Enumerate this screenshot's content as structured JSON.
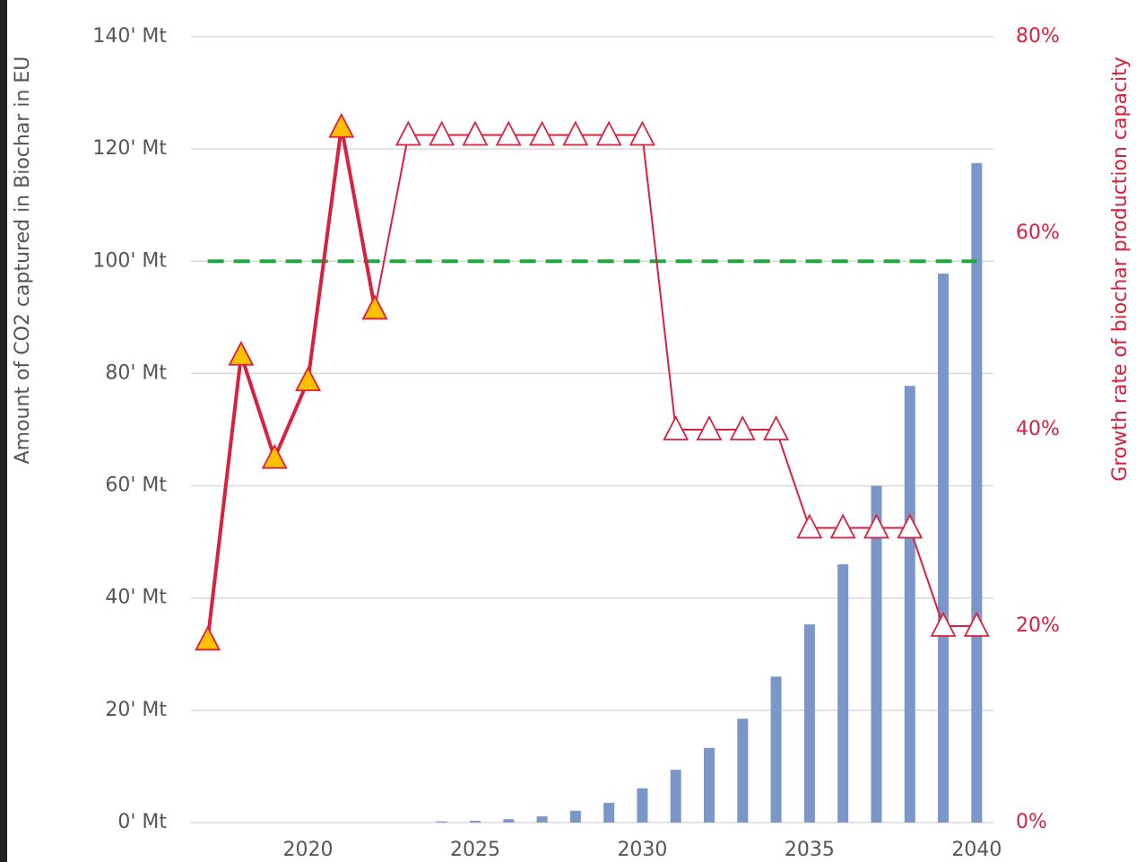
{
  "chart_data": {
    "type": "bar_line",
    "x": [
      2017,
      2018,
      2019,
      2020,
      2021,
      2022,
      2023,
      2024,
      2025,
      2026,
      2027,
      2028,
      2029,
      2030,
      2031,
      2032,
      2033,
      2034,
      2035,
      2036,
      2037,
      2038,
      2039,
      2040
    ],
    "xlim": [
      2016.5,
      2040.5
    ],
    "xticks": [
      2020,
      2025,
      2030,
      2035,
      2040
    ],
    "y_label": "Amount of CO2 captured in Biochar in EU",
    "y2_label": "Growth rate of biochar production capacity",
    "ylim": [
      0,
      140
    ],
    "yticks": [
      {
        "value": 0,
        "label": "0' Mt"
      },
      {
        "value": 20,
        "label": "20' Mt"
      },
      {
        "value": 40,
        "label": "40' Mt"
      },
      {
        "value": 60,
        "label": "60' Mt"
      },
      {
        "value": 80,
        "label": "80' Mt"
      },
      {
        "value": 100,
        "label": "100' Mt"
      },
      {
        "value": 120,
        "label": "120' Mt"
      },
      {
        "value": 140,
        "label": "140' Mt"
      }
    ],
    "y2lim": [
      0,
      80
    ],
    "y2ticks": [
      {
        "value": 0,
        "label": "0%"
      },
      {
        "value": 20,
        "label": "20%"
      },
      {
        "value": 40,
        "label": "40%"
      },
      {
        "value": 60,
        "label": "60%"
      },
      {
        "value": 80,
        "label": "80%"
      }
    ],
    "grid": true,
    "reference_line": {
      "value": 100,
      "color": "#1aaa3c"
    },
    "series": [
      {
        "type": "bar",
        "color": "#7b96c8",
        "values": [
          null,
          null,
          null,
          null,
          null,
          null,
          null,
          0.2,
          0.3,
          0.6,
          1.1,
          2.1,
          3.5,
          6.1,
          9.4,
          13.3,
          18.5,
          26,
          35.3,
          46,
          60,
          77.8,
          97.8,
          117.5
        ]
      },
      {
        "type": "line",
        "axis": "y2",
        "color": "#d9203e",
        "marker_fill": "#ffffff",
        "values": [
          null,
          null,
          null,
          null,
          null,
          52.3,
          70,
          70,
          70,
          70,
          70,
          70,
          70,
          70,
          40,
          40,
          40,
          40,
          30,
          30,
          30,
          30,
          20,
          20
        ]
      },
      {
        "type": "line",
        "axis": "y2",
        "color": "#d9203e",
        "marker_fill": "#ffc000",
        "values": [
          18.6,
          47.6,
          37.1,
          45,
          70.8,
          52.3,
          null,
          null,
          null,
          null,
          null,
          null,
          null,
          null,
          null,
          null,
          null,
          null,
          null,
          null,
          null,
          null,
          null,
          null
        ]
      }
    ]
  }
}
